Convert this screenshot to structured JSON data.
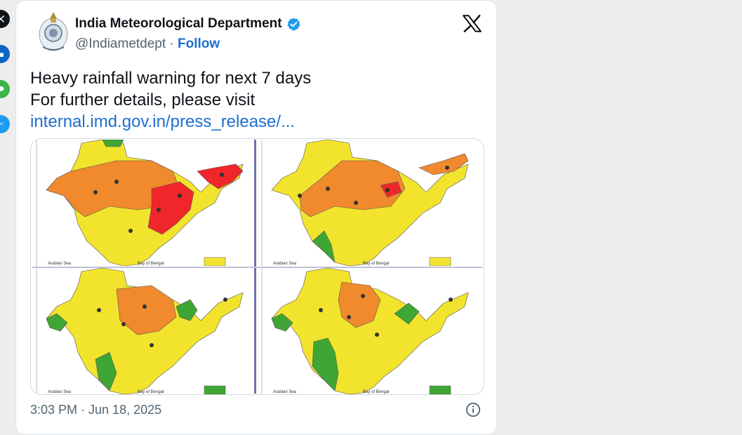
{
  "tweet": {
    "author_name": "India Meteorological Department",
    "handle": "@Indiametdept",
    "separator": "·",
    "follow_label": "Follow",
    "text_line1": "Heavy rainfall warning for next 7 days",
    "text_line2": "For further details, please visit",
    "link_text": "internal.imd.gov.in/press_release/...",
    "timestamp": "3:03 PM · Jun 18, 2025"
  },
  "share_buttons": [
    {
      "icon": "x-icon",
      "color": "#0f1419"
    },
    {
      "icon": "linkedin-icon",
      "color": "#0a66c2"
    },
    {
      "icon": "message-icon",
      "color": "#3cb44a"
    },
    {
      "icon": "messenger-icon",
      "color": "#1d9bf0"
    }
  ],
  "colors": {
    "accent": "#1d6fd0",
    "verified": "#1d9bf0",
    "warning_red": "#f0262a",
    "warning_orange": "#f08a2c",
    "warning_yellow": "#f2e42c",
    "no_warning_green": "#3fa535"
  },
  "map_panels": [
    {
      "panel": "day-1",
      "map_labels": [
        "Arabian Sea",
        "Bay of Bengal"
      ]
    },
    {
      "panel": "day-2",
      "map_labels": [
        "Arabian Sea",
        "Bay of Bengal"
      ]
    },
    {
      "panel": "day-3",
      "map_labels": [
        "Arabian Sea",
        "Bay of Bengal"
      ]
    },
    {
      "panel": "day-4",
      "map_labels": [
        "Arabian Sea",
        "Bay of Bengal"
      ]
    }
  ]
}
